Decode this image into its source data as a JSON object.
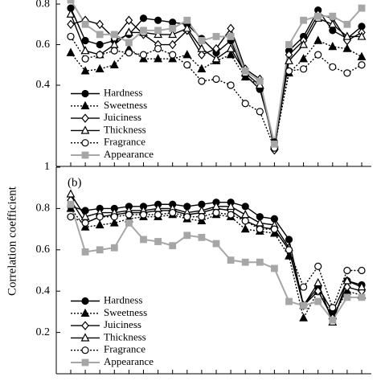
{
  "y_label": "Correlation coefficient",
  "chart_data": [
    {
      "type": "line",
      "ylim": [
        0,
        0.82
      ],
      "yticks": [
        0.4,
        0.6,
        0.8
      ],
      "categories": [
        null,
        null,
        null,
        null,
        null,
        null,
        null,
        null,
        null,
        null,
        null,
        null,
        null,
        null,
        null,
        null,
        null,
        null,
        null,
        null,
        null
      ],
      "series": [
        {
          "name": "Hardness",
          "color": "#000000",
          "marker": "filled-circle",
          "dash": "solid",
          "values": [
            0.78,
            0.62,
            0.6,
            0.62,
            0.65,
            0.73,
            0.72,
            0.71,
            0.7,
            0.63,
            0.56,
            0.62,
            0.45,
            0.38,
            0.12,
            0.57,
            0.64,
            0.77,
            0.67,
            0.63,
            0.69
          ]
        },
        {
          "name": "Sweetness",
          "color": "#000000",
          "marker": "filled-triangle",
          "dash": "dotted",
          "values": [
            0.56,
            0.47,
            0.48,
            0.5,
            0.58,
            0.53,
            0.53,
            0.53,
            0.55,
            0.48,
            0.52,
            0.55,
            0.44,
            0.4,
            0.11,
            0.46,
            0.53,
            0.62,
            0.59,
            0.58,
            0.54
          ]
        },
        {
          "name": "Juiciness",
          "color": "#000000",
          "marker": "open-diamond",
          "dash": "solid",
          "values": [
            0.7,
            0.72,
            0.7,
            0.63,
            0.72,
            0.65,
            0.6,
            0.6,
            0.67,
            0.55,
            0.58,
            0.68,
            0.48,
            0.43,
            0.08,
            0.55,
            0.62,
            0.75,
            0.73,
            0.62,
            0.66
          ]
        },
        {
          "name": "Thickness",
          "color": "#000000",
          "marker": "open-triangle",
          "dash": "solid",
          "values": [
            0.75,
            0.57,
            0.55,
            0.6,
            0.66,
            0.66,
            0.65,
            0.65,
            0.68,
            0.58,
            0.53,
            0.58,
            0.46,
            0.4,
            0.1,
            0.52,
            0.6,
            0.73,
            0.7,
            0.64,
            0.64
          ]
        },
        {
          "name": "Fragrance",
          "color": "#000000",
          "marker": "open-circle",
          "dash": "dotted",
          "values": [
            0.64,
            0.53,
            0.55,
            0.57,
            0.56,
            0.55,
            0.58,
            0.55,
            0.5,
            0.42,
            0.43,
            0.4,
            0.31,
            0.27,
            0.09,
            0.47,
            0.48,
            0.55,
            0.49,
            0.46,
            0.5
          ]
        },
        {
          "name": "Appearance",
          "color": "#a6a6a6",
          "marker": "filled-square",
          "dash": "solid",
          "values": [
            0.82,
            0.7,
            0.65,
            0.65,
            0.61,
            0.67,
            0.67,
            0.68,
            0.72,
            0.62,
            0.64,
            0.64,
            0.47,
            0.42,
            0.11,
            0.6,
            0.72,
            0.74,
            0.74,
            0.7,
            0.78
          ]
        }
      ],
      "legend": "lower left"
    },
    {
      "type": "line",
      "panel_label": "(b)",
      "ylim": [
        0,
        1
      ],
      "yticks": [
        0.2,
        0.4,
        0.6,
        0.8,
        1
      ],
      "categories": [
        null,
        null,
        null,
        null,
        null,
        null,
        null,
        null,
        null,
        null,
        null,
        null,
        null,
        null,
        null,
        null,
        null,
        null,
        null,
        null,
        null
      ],
      "series": [
        {
          "name": "Hardness",
          "color": "#000000",
          "marker": "filled-circle",
          "dash": "solid",
          "values": [
            0.81,
            0.79,
            0.8,
            0.8,
            0.81,
            0.81,
            0.82,
            0.82,
            0.81,
            0.82,
            0.83,
            0.83,
            0.81,
            0.76,
            0.75,
            0.65,
            0.33,
            0.42,
            0.3,
            0.45,
            0.43
          ]
        },
        {
          "name": "Sweetness",
          "color": "#000000",
          "marker": "filled-triangle",
          "dash": "dotted",
          "values": [
            0.8,
            0.71,
            0.72,
            0.73,
            0.75,
            0.76,
            0.76,
            0.77,
            0.75,
            0.74,
            0.77,
            0.76,
            0.7,
            0.69,
            0.68,
            0.57,
            0.27,
            0.4,
            0.28,
            0.4,
            0.38
          ]
        },
        {
          "name": "Juiciness",
          "color": "#000000",
          "marker": "open-diamond",
          "dash": "solid",
          "values": [
            0.84,
            0.73,
            0.76,
            0.77,
            0.78,
            0.78,
            0.79,
            0.79,
            0.77,
            0.78,
            0.8,
            0.79,
            0.74,
            0.71,
            0.7,
            0.6,
            0.33,
            0.4,
            0.27,
            0.42,
            0.4
          ]
        },
        {
          "name": "Thickness",
          "color": "#000000",
          "marker": "open-triangle",
          "dash": "solid",
          "values": [
            0.87,
            0.76,
            0.78,
            0.78,
            0.79,
            0.79,
            0.8,
            0.8,
            0.78,
            0.79,
            0.81,
            0.81,
            0.77,
            0.73,
            0.72,
            0.61,
            0.33,
            0.44,
            0.25,
            0.45,
            0.42
          ]
        },
        {
          "name": "Fragrance",
          "color": "#000000",
          "marker": "open-circle",
          "dash": "dotted",
          "values": [
            0.76,
            0.73,
            0.76,
            0.76,
            0.77,
            0.77,
            0.77,
            0.78,
            0.76,
            0.76,
            0.78,
            0.77,
            0.74,
            0.7,
            0.7,
            0.6,
            0.42,
            0.52,
            0.32,
            0.5,
            0.5
          ]
        },
        {
          "name": "Appearance",
          "color": "#a6a6a6",
          "marker": "filled-square",
          "dash": "solid",
          "values": [
            0.82,
            0.59,
            0.6,
            0.61,
            0.73,
            0.65,
            0.64,
            0.62,
            0.67,
            0.66,
            0.63,
            0.55,
            0.54,
            0.54,
            0.51,
            0.35,
            0.33,
            0.35,
            0.26,
            0.37,
            0.37
          ]
        }
      ],
      "legend": "lower left"
    }
  ]
}
